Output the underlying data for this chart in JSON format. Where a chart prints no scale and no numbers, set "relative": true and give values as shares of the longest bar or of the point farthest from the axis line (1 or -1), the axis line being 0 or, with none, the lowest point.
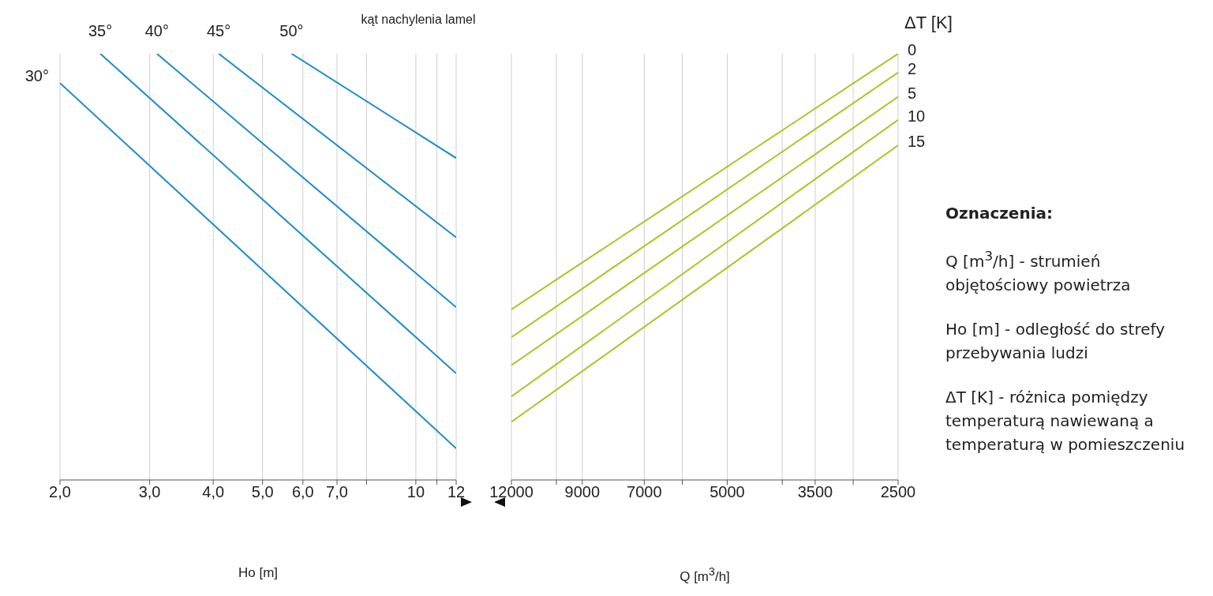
{
  "chart_data": [
    {
      "type": "line",
      "legend_title": "kąt nachylenia lamel",
      "xlabel": "Ho  [m]",
      "relative": true,
      "log": "x",
      "xlim": [
        2,
        12
      ],
      "xticks": [
        {
          "value": 2,
          "label": "2,0"
        },
        {
          "value": 3,
          "label": "3,0"
        },
        {
          "value": 4,
          "label": "4,0"
        },
        {
          "value": 5,
          "label": "5,0"
        },
        {
          "value": 6,
          "label": "6,0"
        },
        {
          "value": 7,
          "label": "7,0"
        },
        {
          "value": 8,
          "label": null
        },
        10,
        {
          "value": 11,
          "label": null
        },
        12
      ],
      "grid": "x",
      "marker": "none",
      "series": [
        {
          "name": "30°",
          "color": "#1a8ccc",
          "x": [
            2,
            12
          ],
          "values": [
            0.931,
            0.074
          ]
        },
        {
          "name": "35°",
          "color": "#1a8ccc",
          "x": [
            2.4,
            12
          ],
          "values": [
            1,
            0.25
          ]
        },
        {
          "name": "40°",
          "color": "#1a8ccc",
          "x": [
            3.1,
            12
          ],
          "values": [
            1,
            0.405
          ]
        },
        {
          "name": "45°",
          "color": "#1a8ccc",
          "x": [
            4.1,
            12
          ],
          "values": [
            1,
            0.569
          ]
        },
        {
          "name": "50°",
          "color": "#1a8ccc",
          "x": [
            5.7,
            12
          ],
          "values": [
            1,
            0.755
          ]
        }
      ]
    },
    {
      "type": "line",
      "legend_title": "ΔT [K]",
      "xlabel": "Q [m$^{3}$/h]",
      "relative": true,
      "log": "x",
      "xlim": [
        12000,
        2500
      ],
      "xticks": [
        12000,
        {
          "value": 10000,
          "label": null
        },
        9000,
        7000,
        {
          "value": 6000,
          "label": null
        },
        5000,
        {
          "value": 4000,
          "label": null
        },
        3500,
        {
          "value": 3000,
          "label": null
        },
        2500
      ],
      "grid": "x",
      "marker": "none",
      "series": [
        {
          "name": "0",
          "color": "#a6c821",
          "x": [
            12000,
            2500
          ],
          "values": [
            0.4,
            1
          ]
        },
        {
          "name": "2",
          "color": "#a6c821",
          "x": [
            12000,
            2500
          ],
          "values": [
            0.335,
            0.956
          ]
        },
        {
          "name": "5",
          "color": "#a6c821",
          "x": [
            12000,
            2500
          ],
          "values": [
            0.269,
            0.899
          ]
        },
        {
          "name": "10",
          "color": "#a6c821",
          "x": [
            12000,
            2500
          ],
          "values": [
            0.196,
            0.845
          ]
        },
        {
          "name": "15",
          "color": "#a6c821",
          "x": [
            12000,
            2500
          ],
          "values": [
            0.136,
            0.785
          ]
        }
      ]
    },
    {
      "type": "other",
      "title": "Oznaczenia:",
      "annotations": [
        "Q [m$^{3}$/h] - strumień objętościowy powietrza",
        "Ho [m] - odległość do strefy przebywania ludzi",
        "ΔT [K] - różnica pomiędzy temperaturą nawiewaną a temperaturą w pomieszczeniu"
      ]
    }
  ]
}
